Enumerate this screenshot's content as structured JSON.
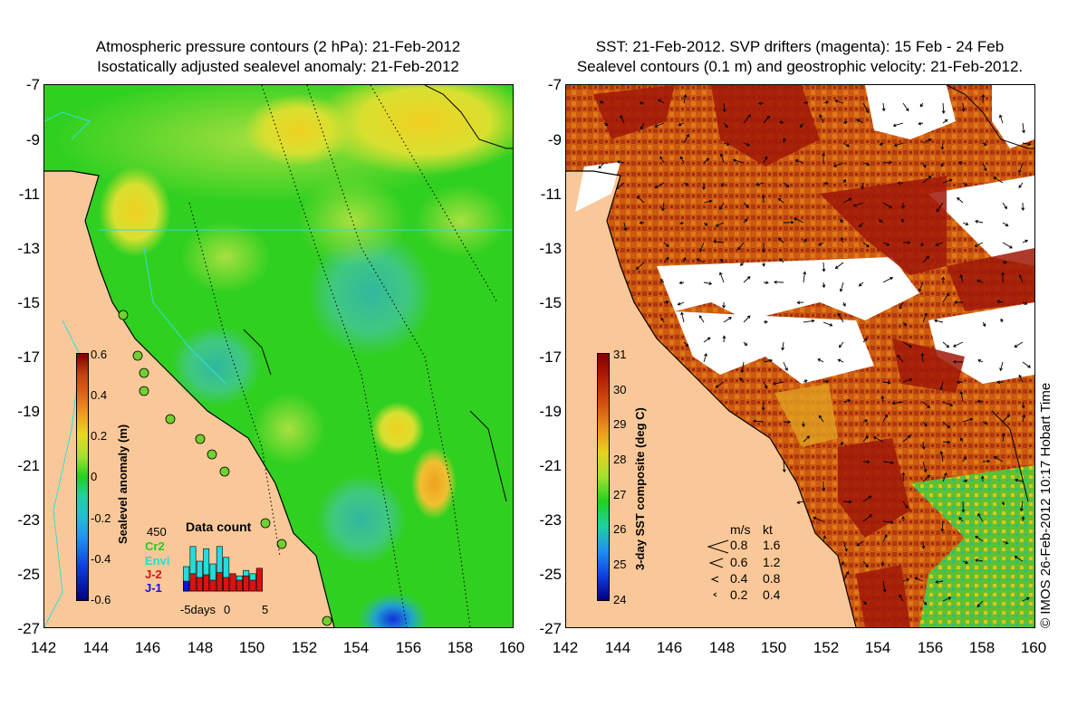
{
  "left_panel": {
    "title_line1": "Atmospheric pressure contours (2 hPa): 21-Feb-2012",
    "title_line2": "Isostatically adjusted sealevel anomaly: 21-Feb-2012",
    "colorbar": {
      "label": "Sealevel anomaly (m)",
      "ticks": [
        "0.6",
        "0.4",
        "0.2",
        "0",
        "-0.2",
        "-0.4",
        "-0.6"
      ],
      "range": [
        -0.6,
        0.6
      ]
    },
    "data_count": {
      "title": "Data count",
      "scale_label": "450",
      "satellites": [
        {
          "name": "Cr2",
          "color": "#22cc22"
        },
        {
          "name": "Envi",
          "color": "#22dddd"
        },
        {
          "name": "J-2",
          "color": "#dd1111"
        },
        {
          "name": "J-1",
          "color": "#1111dd"
        }
      ],
      "x_ticks": [
        "-5days",
        "0",
        "5"
      ],
      "bars_total": [
        0.45,
        0.82,
        0.55,
        0.78,
        0.5,
        0.82,
        0.62,
        0.32,
        0.28,
        0.38,
        0.32,
        0.42
      ],
      "bars_red": [
        0.18,
        0.32,
        0.25,
        0.3,
        0.2,
        0.34,
        0.25,
        0.32,
        0.2,
        0.28,
        0.2,
        0.42
      ],
      "bars_blue": [
        0.18,
        0.0,
        0.0,
        0.0,
        0.0,
        0.0,
        0.0,
        0.0,
        0.0,
        0.0,
        0.0,
        0.0
      ]
    }
  },
  "right_panel": {
    "title_line1": "SST: 21-Feb-2012. SVP drifters (magenta): 15 Feb - 24 Feb",
    "title_line2": "Sealevel contours (0.1 m) and geostrophic velocity: 21-Feb-2012.",
    "colorbar": {
      "label": "3-day SST composite (deg C)",
      "ticks": [
        "31",
        "30",
        "29",
        "28",
        "27",
        "26",
        "25",
        "24"
      ],
      "range": [
        24,
        31
      ]
    },
    "velocity_legend": {
      "header_ms": "m/s",
      "header_kt": "kt",
      "rows": [
        {
          "ms": "0.8",
          "kt": "1.6"
        },
        {
          "ms": "0.6",
          "kt": "1.2"
        },
        {
          "ms": "0.4",
          "kt": "0.8"
        },
        {
          "ms": "0.2",
          "kt": "0.4"
        }
      ]
    }
  },
  "axes": {
    "y_ticks": [
      "-7",
      "-9",
      "-11",
      "-13",
      "-15",
      "-17",
      "-19",
      "-21",
      "-23",
      "-25",
      "-27"
    ],
    "x_ticks": [
      "142",
      "144",
      "146",
      "148",
      "150",
      "152",
      "154",
      "156",
      "158",
      "160"
    ]
  },
  "credit": "© IMOS 26-Feb-2012 10:17 Hobart Time",
  "colors": {
    "land": "#fac898",
    "coast_line": "#000000",
    "iso_line": "#33dddd"
  }
}
